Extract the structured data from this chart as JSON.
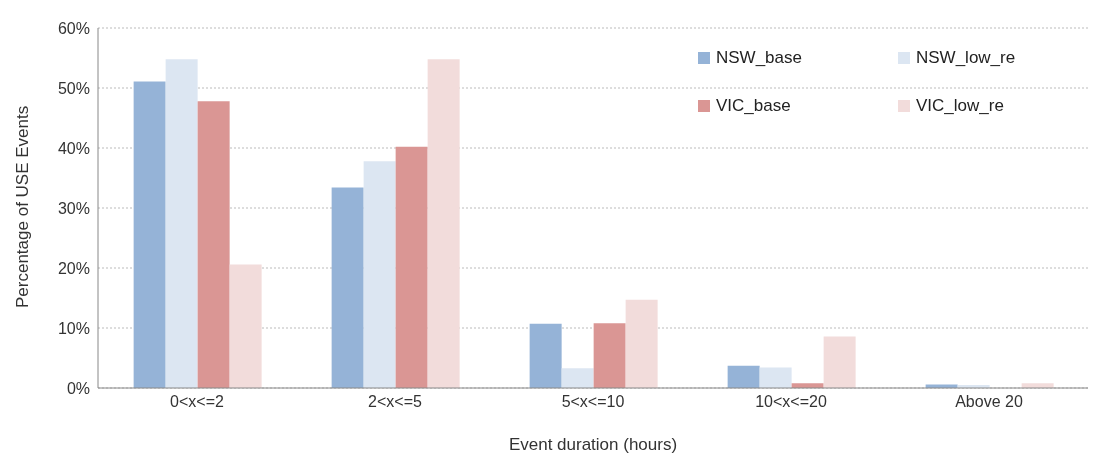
{
  "chart_data": {
    "type": "bar",
    "xlabel": "Event duration (hours)",
    "ylabel": "Percentage of USE Events",
    "categories": [
      "0<x<=2",
      "2<x<=5",
      "5<x<=10",
      "10<x<=20",
      "Above 20"
    ],
    "series": [
      {
        "name": "NSW_base",
        "color": "#95b3d7",
        "values": [
          51.1,
          33.4,
          10.7,
          3.7,
          0.6
        ]
      },
      {
        "name": "NSW_low_re",
        "color": "#dce6f2",
        "values": [
          54.8,
          37.8,
          3.3,
          3.4,
          0.5
        ]
      },
      {
        "name": "VIC_base",
        "color": "#da9694",
        "values": [
          47.8,
          40.2,
          10.8,
          0.8,
          0
        ]
      },
      {
        "name": "VIC_low_re",
        "color": "#f2dcdb",
        "values": [
          20.6,
          54.8,
          14.7,
          8.6,
          0.8
        ]
      }
    ],
    "ylim": [
      0,
      60
    ],
    "yticks": [
      {
        "value": 0,
        "label": "0%"
      },
      {
        "value": 10,
        "label": "10%"
      },
      {
        "value": 20,
        "label": "20%"
      },
      {
        "value": 30,
        "label": "30%"
      },
      {
        "value": 40,
        "label": "40%"
      },
      {
        "value": 50,
        "label": "50%"
      },
      {
        "value": 60,
        "label": "60%"
      }
    ],
    "grid": "y",
    "legend": "top right"
  }
}
